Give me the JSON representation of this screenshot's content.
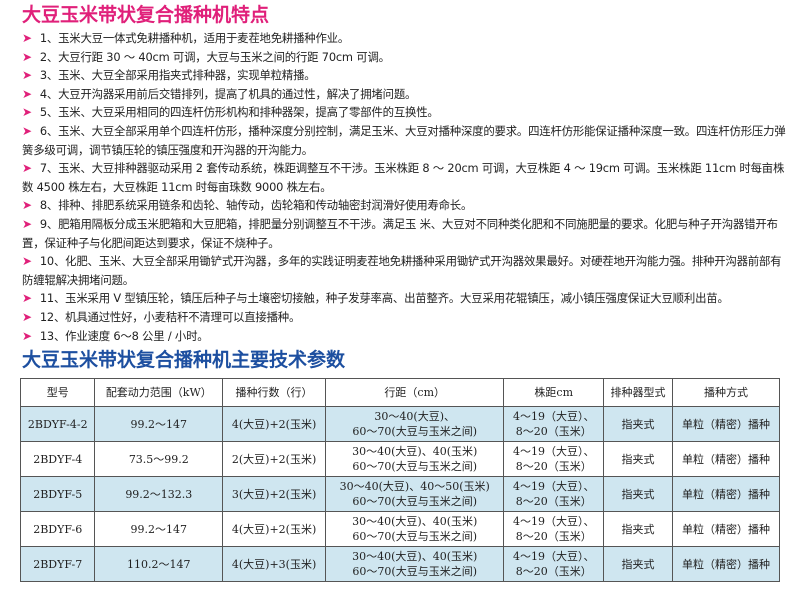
{
  "features": {
    "title": "大豆玉米带状复合播种机特点",
    "items": [
      "1、玉米大豆一体式免耕播种机，适用于麦茬地免耕播种作业。",
      "2、大豆行距 30 ～ 40cm 可调，大豆与玉米之间的行距 70cm 可调。",
      "3、玉米、大豆全部采用指夹式排种器，实现单粒精播。",
      "4、大豆开沟器采用前后交错排列，提高了机具的通过性，解决了拥堵问题。",
      "5、玉米、大豆采用相同的四连杆仿形机构和排种器架，提高了零部件的互换性。",
      "6、玉米、大豆全部采用单个四连杆仿形，播种深度分别控制，满足玉米、大豆对播种深度的要求。四连杆仿形能保证播种深度一致。四连杆仿形压力弹簧多级可调，调节镇压轮的镇压强度和开沟器的开沟能力。",
      "7、玉米、大豆排种器驱动采用 2 套传动系统，株距调整互不干涉。玉米株距 8 ～ 20cm 可调，大豆株距 4 ～ 19cm 可调。玉米株距 11cm 时每亩株数 4500 株左右，大豆株距 11cm 时每亩珠数 9000 株左右。",
      "8、排种、排肥系统采用链条和齿轮、轴传动，齿轮箱和传动轴密封润滑好使用寿命长。",
      "9、肥箱用隔板分成玉米肥箱和大豆肥箱，排肥量分别调整互不干涉。满足玉 米、大豆对不同种类化肥和不同施肥量的要求。化肥与种子开沟器错开布置，保证种子与化肥间距达到要求，保证不烧种子。",
      "10、化肥、玉米、大豆全部采用锄铲式开沟器，多年的实践证明麦茬地免耕播种采用锄铲式开沟器效果最好。对硬茬地开沟能力强。排种开沟器前部有防缠辊解决拥堵问题。",
      "11、玉米采用 V 型镇压轮，镇压后种子与土壤密切接触，种子发芽率高、出苗整齐。大豆采用花辊镇压，减小镇压强度保证大豆顺利出苗。",
      "12、机具通过性好，小麦秸秆不清理可以直接播种。",
      "13、作业速度 6～8 公里 / 小时。"
    ]
  },
  "specs": {
    "title": "大豆玉米带状复合播种机主要技术参数",
    "headers": [
      "型号",
      "配套动力范围（kW）",
      "播种行数（行）",
      "行距（cm）",
      "株距cm",
      "排种器型式",
      "播种方式"
    ],
    "rows": [
      [
        "2BDYF-4-2",
        "99.2～147",
        "4(大豆)+2(玉米)",
        "30～40(大豆)、\n60～70(大豆与玉米之间)",
        "4～19（大豆）、\n8～20（玉米）",
        "指夹式",
        "单粒（精密）播种"
      ],
      [
        "2BDYF-4",
        "73.5～99.2",
        "2(大豆)+2(玉米)",
        "30～40(大豆)、40(玉米)\n60～70(大豆与玉米之间)",
        "4～19（大豆）、\n8～20（玉米）",
        "指夹式",
        "单粒（精密）播种"
      ],
      [
        "2BDYF-5",
        "99.2～132.3",
        "3(大豆)+2(玉米)",
        "30～40(大豆)、40～50(玉米)\n60～70(大豆与玉米之间)",
        "4～19（大豆）、\n8～20（玉米）",
        "指夹式",
        "单粒（精密）播种"
      ],
      [
        "2BDYF-6",
        "99.2～147",
        "4(大豆)+2(玉米)",
        "30～40(大豆)、40(玉米)\n60～70(大豆与玉米之间)",
        "4～19（大豆）、\n8～20（玉米）",
        "指夹式",
        "单粒（精密）播种"
      ],
      [
        "2BDYF-7",
        "110.2～147",
        "4(大豆)+3(玉米)",
        "30～40(大豆)、40(玉米)\n60～70(大豆与玉米之间)",
        "4～19（大豆）、\n8～20（玉米）",
        "指夹式",
        "单粒（精密）播种"
      ]
    ]
  },
  "colors": {
    "accent_pink": "#e0207a",
    "title_blue": "#1d4fa0",
    "row_highlight": "#cfe6f0"
  },
  "icons": {
    "bullet": "arrow-right-icon"
  }
}
